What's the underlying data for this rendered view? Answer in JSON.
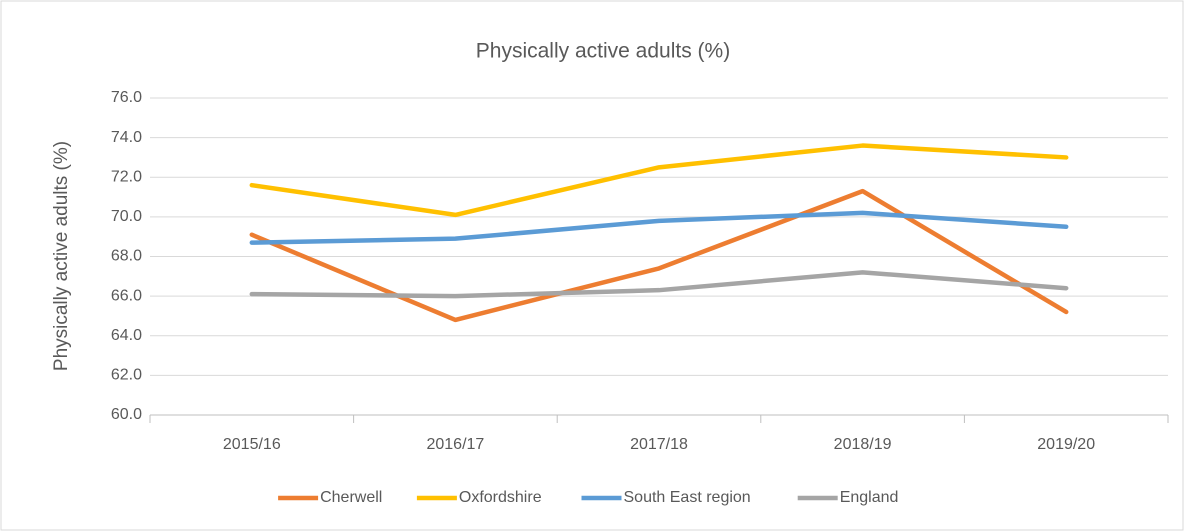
{
  "chart_data": {
    "type": "line",
    "title": "Physically active adults (%)",
    "y_label": "Physically active adults (%)",
    "categories": [
      "2015/16",
      "2016/17",
      "2017/18",
      "2018/19",
      "2019/20"
    ],
    "series": [
      {
        "name": "Cherwell",
        "color": "#ed7d31",
        "values": [
          69.1,
          64.8,
          67.4,
          71.3,
          65.2
        ]
      },
      {
        "name": "Oxfordshire",
        "color": "#ffc000",
        "values": [
          71.6,
          70.1,
          72.5,
          73.6,
          73.0
        ]
      },
      {
        "name": "South East region",
        "color": "#5b9bd5",
        "values": [
          68.7,
          68.9,
          69.8,
          70.2,
          69.5
        ]
      },
      {
        "name": "England",
        "color": "#a5a5a5",
        "values": [
          66.1,
          66.0,
          66.3,
          67.2,
          66.4
        ]
      }
    ],
    "ylim": [
      60,
      76
    ],
    "yticks": [
      {
        "value": 60,
        "label": "60.0"
      },
      {
        "value": 62,
        "label": "62.0"
      },
      {
        "value": 64,
        "label": "64.0"
      },
      {
        "value": 66,
        "label": "66.0"
      },
      {
        "value": 68,
        "label": "68.0"
      },
      {
        "value": 70,
        "label": "70.0"
      },
      {
        "value": 72,
        "label": "72.0"
      },
      {
        "value": 74,
        "label": "74.0"
      },
      {
        "value": 76,
        "label": "76.0"
      }
    ],
    "grid": true,
    "legend": "bottom"
  }
}
